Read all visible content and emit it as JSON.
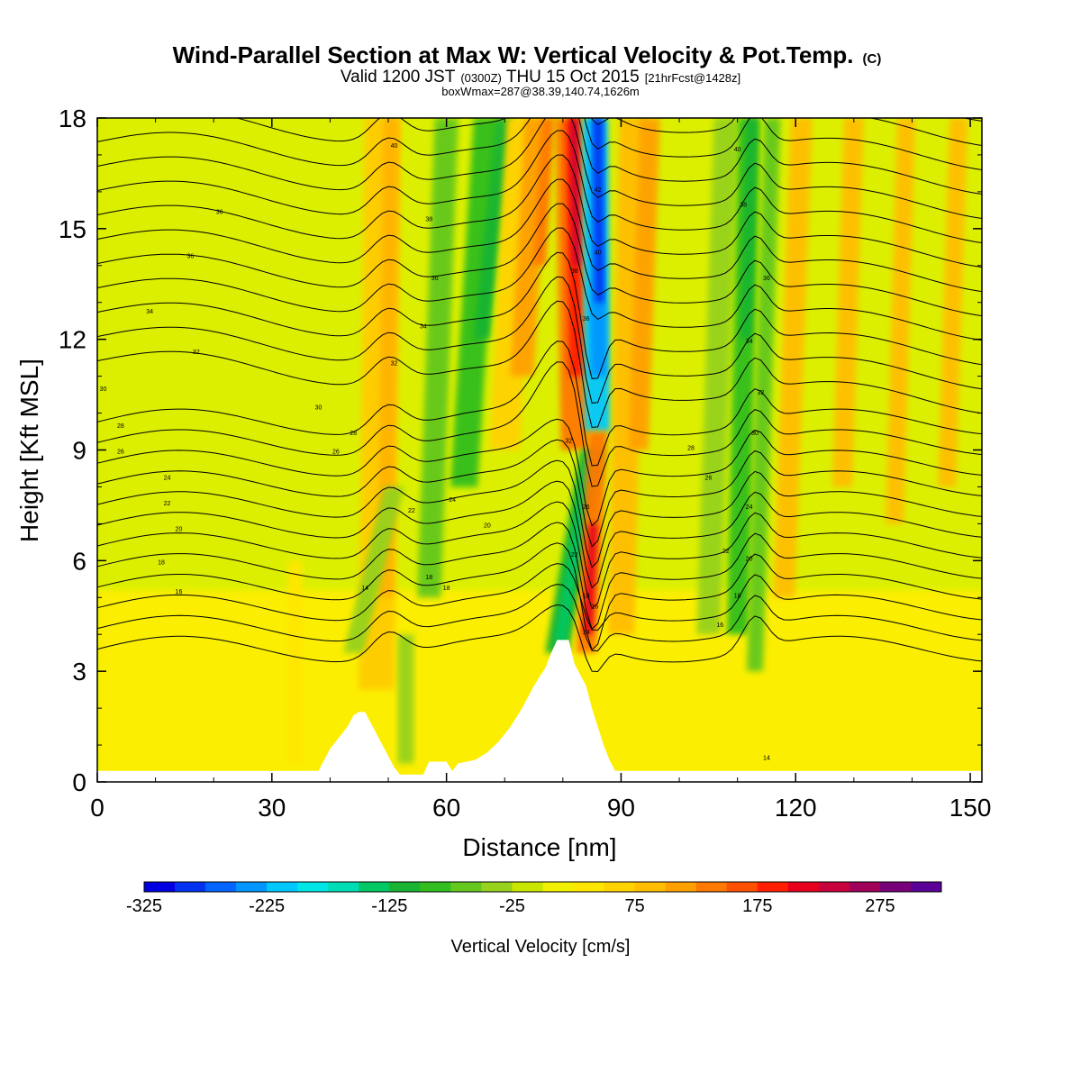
{
  "chart_data": {
    "type": "heatmap",
    "title": "Wind-Parallel Section at Max W: Vertical Velocity & Pot.Temp.",
    "title_mark": "(C)",
    "subtitle": {
      "valid_prefix": "Valid 1200 JST",
      "utc": "(0300Z)",
      "date": "THU 15 Oct 2015",
      "forecast": "[21hrFcst@1428z]"
    },
    "boxline": "boxWmax=287@38.39,140.74,1626m",
    "xlabel": "Distance [nm]",
    "ylabel": "Height [Kft MSL]",
    "xlim": [
      0,
      152
    ],
    "ylim": [
      0,
      18
    ],
    "x_ticks": [
      "0",
      "30",
      "60",
      "90",
      "120",
      "150"
    ],
    "y_ticks": [
      "0",
      "3",
      "6",
      "9",
      "12",
      "15",
      "18"
    ],
    "colorbar": {
      "label": "Vertical Velocity [cm/s]",
      "tick_labels": [
        "-325",
        "-225",
        "-125",
        "-25",
        "75",
        "175",
        "275"
      ],
      "colors": [
        "#0000e0",
        "#0032f0",
        "#0064ff",
        "#0096ff",
        "#00c8ff",
        "#00e6e6",
        "#00dcb4",
        "#00c864",
        "#19b432",
        "#32be1e",
        "#64c81e",
        "#96d21e",
        "#c8e600",
        "#f0f000",
        "#ffe600",
        "#ffd200",
        "#ffbe00",
        "#ffa000",
        "#ff7800",
        "#ff5000",
        "#ff1e00",
        "#e6001e",
        "#c8003c",
        "#a0005a",
        "#780078",
        "#5a0096"
      ]
    },
    "terrain_kft": [
      [
        0,
        0.3
      ],
      [
        38,
        0.3
      ],
      [
        39,
        0.6
      ],
      [
        40,
        0.9
      ],
      [
        41,
        1.1
      ],
      [
        42,
        1.3
      ],
      [
        43,
        1.5
      ],
      [
        44,
        1.8
      ],
      [
        45,
        1.9
      ],
      [
        46,
        1.9
      ],
      [
        47,
        1.6
      ],
      [
        48,
        1.3
      ],
      [
        49,
        1.0
      ],
      [
        50,
        0.7
      ],
      [
        51,
        0.4
      ],
      [
        52,
        0.2
      ],
      [
        56,
        0.2
      ],
      [
        57,
        0.55
      ],
      [
        60,
        0.55
      ],
      [
        61,
        0.3
      ],
      [
        62,
        0.5
      ],
      [
        65,
        0.6
      ],
      [
        67,
        0.8
      ],
      [
        69,
        1.1
      ],
      [
        71,
        1.5
      ],
      [
        73,
        2.0
      ],
      [
        75,
        2.6
      ],
      [
        77,
        3.1
      ],
      [
        78,
        3.5
      ],
      [
        79,
        3.85
      ],
      [
        81,
        3.85
      ],
      [
        82,
        3.2
      ],
      [
        84,
        2.6
      ],
      [
        85,
        2.0
      ],
      [
        86,
        1.5
      ],
      [
        87,
        1.0
      ],
      [
        88,
        0.6
      ],
      [
        89,
        0.3
      ],
      [
        152,
        0.3
      ]
    ],
    "w_features": [
      {
        "x": 86,
        "y_range": [
          9,
          18
        ],
        "value": -300
      },
      {
        "x": 82,
        "y_range": [
          9,
          18
        ],
        "value": 220
      },
      {
        "x": 84.5,
        "y_range": [
          3.5,
          9
        ],
        "value": 230
      },
      {
        "x": 78,
        "y_range": [
          3.5,
          9
        ],
        "value": -120
      },
      {
        "x": 112,
        "y_range": [
          9,
          18
        ],
        "value": -100
      },
      {
        "x": 67,
        "y_range": [
          10,
          18
        ],
        "value": -80
      },
      {
        "x": 52,
        "y_range": [
          4,
          18
        ],
        "value": 60
      }
    ],
    "theta_labels": [
      {
        "x": 21,
        "y": 15.4,
        "text": "36"
      },
      {
        "x": 16,
        "y": 14.2,
        "text": "36"
      },
      {
        "x": 9,
        "y": 12.7,
        "text": "34"
      },
      {
        "x": 17,
        "y": 11.6,
        "text": "32"
      },
      {
        "x": 1,
        "y": 10.6,
        "text": "30"
      },
      {
        "x": 4,
        "y": 9.6,
        "text": "28"
      },
      {
        "x": 4,
        "y": 8.9,
        "text": "26"
      },
      {
        "x": 12,
        "y": 8.2,
        "text": "24"
      },
      {
        "x": 12,
        "y": 7.5,
        "text": "22"
      },
      {
        "x": 14,
        "y": 6.8,
        "text": "20"
      },
      {
        "x": 11,
        "y": 5.9,
        "text": "18"
      },
      {
        "x": 14,
        "y": 5.1,
        "text": "16"
      },
      {
        "x": 51,
        "y": 17.2,
        "text": "40"
      },
      {
        "x": 57,
        "y": 15.2,
        "text": "38"
      },
      {
        "x": 58,
        "y": 13.6,
        "text": "36"
      },
      {
        "x": 56,
        "y": 12.3,
        "text": "34"
      },
      {
        "x": 51,
        "y": 11.3,
        "text": "32"
      },
      {
        "x": 38,
        "y": 10.1,
        "text": "30"
      },
      {
        "x": 44,
        "y": 9.4,
        "text": "28"
      },
      {
        "x": 41,
        "y": 8.9,
        "text": "26"
      },
      {
        "x": 54,
        "y": 7.3,
        "text": "22"
      },
      {
        "x": 61,
        "y": 7.6,
        "text": "24"
      },
      {
        "x": 67,
        "y": 6.9,
        "text": "20"
      },
      {
        "x": 57,
        "y": 5.5,
        "text": "18"
      },
      {
        "x": 60,
        "y": 5.2,
        "text": "18"
      },
      {
        "x": 46,
        "y": 5.2,
        "text": "14"
      },
      {
        "x": 82,
        "y": 13.8,
        "text": "38"
      },
      {
        "x": 84,
        "y": 12.5,
        "text": "36"
      },
      {
        "x": 86,
        "y": 14.3,
        "text": "40"
      },
      {
        "x": 86,
        "y": 16.0,
        "text": "42"
      },
      {
        "x": 81,
        "y": 9.2,
        "text": "32"
      },
      {
        "x": 84,
        "y": 7.4,
        "text": "26"
      },
      {
        "x": 82,
        "y": 6.1,
        "text": "22"
      },
      {
        "x": 84,
        "y": 5.0,
        "text": "18"
      },
      {
        "x": 85.5,
        "y": 4.7,
        "text": "16"
      },
      {
        "x": 84,
        "y": 4.0,
        "text": "14"
      },
      {
        "x": 110,
        "y": 17.1,
        "text": "40"
      },
      {
        "x": 111,
        "y": 15.6,
        "text": "38"
      },
      {
        "x": 115,
        "y": 13.6,
        "text": "36"
      },
      {
        "x": 112,
        "y": 11.9,
        "text": "34"
      },
      {
        "x": 114,
        "y": 10.5,
        "text": "32"
      },
      {
        "x": 113,
        "y": 9.4,
        "text": "30"
      },
      {
        "x": 102,
        "y": 9.0,
        "text": "28"
      },
      {
        "x": 105,
        "y": 8.2,
        "text": "26"
      },
      {
        "x": 112,
        "y": 7.4,
        "text": "24"
      },
      {
        "x": 108,
        "y": 6.2,
        "text": "22"
      },
      {
        "x": 112,
        "y": 6.0,
        "text": "20"
      },
      {
        "x": 110,
        "y": 5.0,
        "text": "18"
      },
      {
        "x": 107,
        "y": 4.2,
        "text": "16"
      },
      {
        "x": 115,
        "y": 0.6,
        "text": "14"
      }
    ]
  }
}
